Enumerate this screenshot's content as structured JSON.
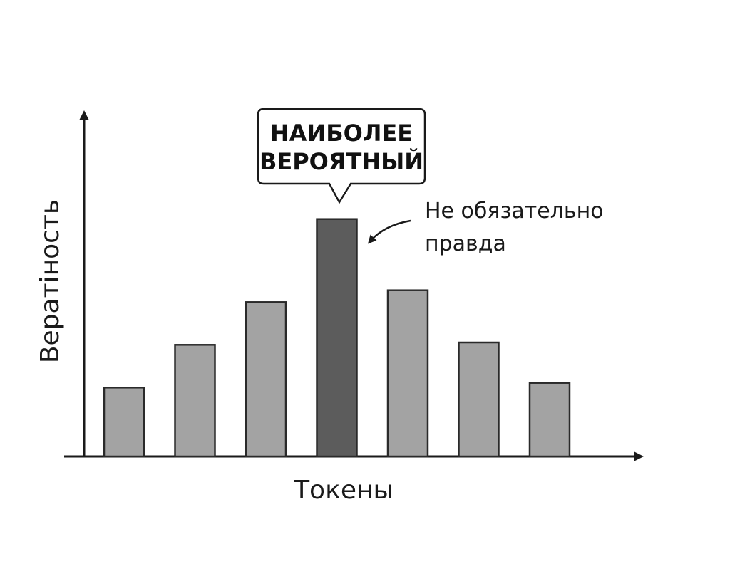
{
  "chart_data": {
    "type": "bar",
    "categories": [
      "",
      "",
      "",
      "",
      "",
      "",
      ""
    ],
    "values": [
      2.9,
      4.7,
      6.5,
      10.0,
      7.0,
      4.8,
      3.1
    ],
    "highlight_index": 3,
    "xlabel": "Токены",
    "ylabel": "Вератiность",
    "ylim": [
      0,
      12
    ],
    "grid": false,
    "colors": {
      "bar": "#a3a3a3",
      "highlight": "#5c5c5c",
      "axis": "#1a1a1a"
    },
    "annotations": {
      "callout_lines": [
        "НАИБОЛЕЕ",
        "ВЕРОЯТНЫЙ"
      ],
      "note_lines": [
        "Не обязательно",
        "правда"
      ]
    }
  }
}
